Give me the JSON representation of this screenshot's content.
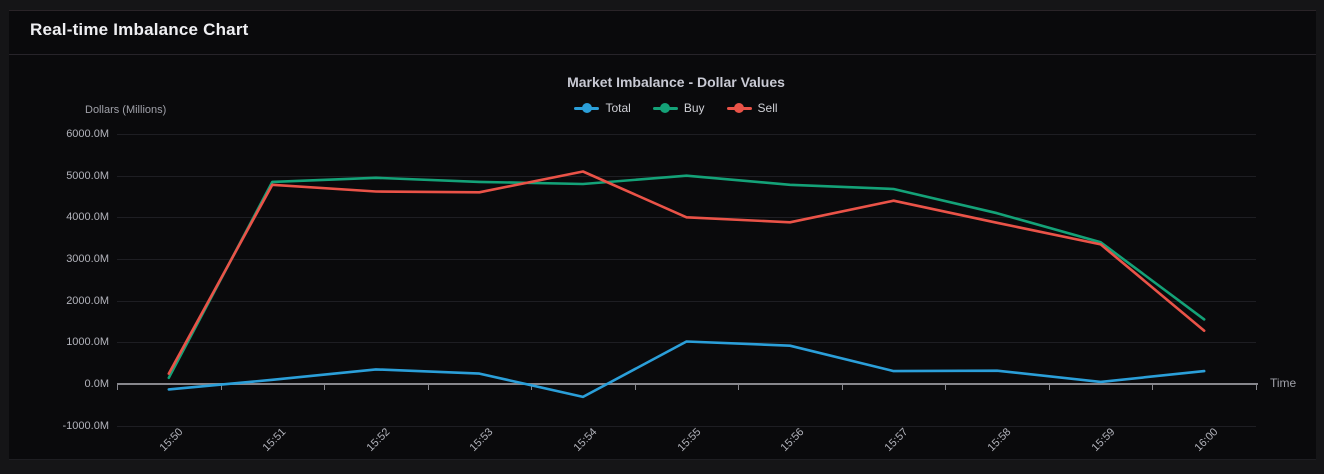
{
  "window": {
    "title": "Real-time Imbalance Chart"
  },
  "chart_data": {
    "type": "line",
    "title": "Market Imbalance - Dollar Values",
    "xlabel": "Time",
    "ylabel": "Dollars (Millions)",
    "categories": [
      "15:50",
      "15:51",
      "15:52",
      "15:53",
      "15:54",
      "15:55",
      "15:56",
      "15:57",
      "15:58",
      "15:59",
      "16:00"
    ],
    "series": [
      {
        "name": "Total",
        "color": "#2b9fd9",
        "values": [
          -130,
          100,
          350,
          250,
          -310,
          1020,
          920,
          310,
          320,
          50,
          310
        ]
      },
      {
        "name": "Buy",
        "color": "#14a278",
        "values": [
          150,
          4850,
          4950,
          4850,
          4800,
          5000,
          4780,
          4680,
          4100,
          3400,
          1550
        ]
      },
      {
        "name": "Sell",
        "color": "#ea5348",
        "values": [
          250,
          4780,
          4620,
          4600,
          5100,
          4000,
          3880,
          4400,
          3870,
          3350,
          1280
        ]
      }
    ],
    "ylim": [
      -1000,
      6000
    ],
    "ytick_step": 1000,
    "ytick_labels": [
      "6000.0M",
      "5000.0M",
      "4000.0M",
      "3000.0M",
      "2000.0M",
      "1000.0M",
      "0.0M",
      "-1000.0M"
    ],
    "grid": true,
    "legend_position": "top"
  },
  "colors": {
    "background": "#0a0a0c",
    "axis": "#87878d",
    "grid": "#1e1e23",
    "total": "#2b9fd9",
    "buy": "#14a278",
    "sell": "#ea5348"
  }
}
